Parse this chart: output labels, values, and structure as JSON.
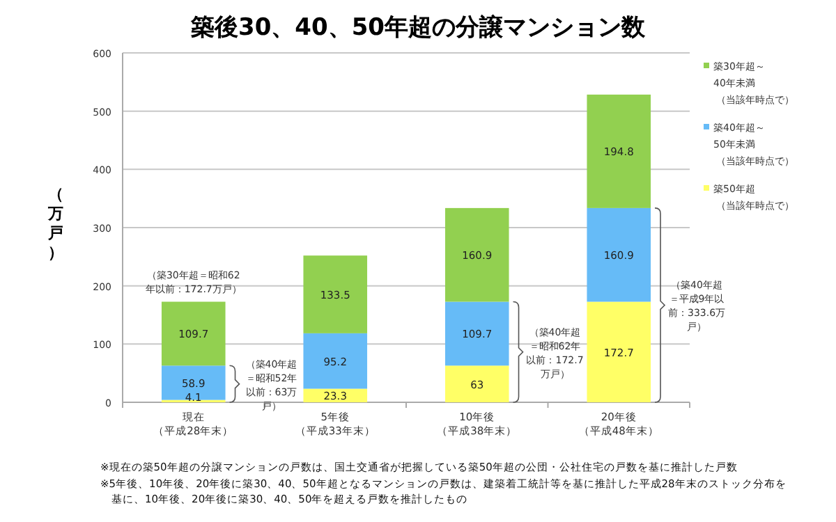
{
  "chart_data": {
    "type": "bar",
    "stacked": true,
    "title": "築後30、40、50年超の分譲マンション数",
    "ylabel": "（万戸）",
    "categories": [
      "現在（平成28年末）",
      "5年後（平成33年末）",
      "10年後（平成38年末）",
      "20年後（平成48年末）"
    ],
    "series": [
      {
        "name": "築50年超（当該年時点で）",
        "color": "#ffff66",
        "values": [
          4.1,
          23.3,
          63,
          172.7
        ]
      },
      {
        "name": "築40年超～50年未満（当該年時点で）",
        "color": "#66bbf7",
        "values": [
          58.9,
          95.2,
          109.7,
          160.9
        ]
      },
      {
        "name": "築30年超～40年未満（当該年時点で）",
        "color": "#92d050",
        "values": [
          109.7,
          133.5,
          160.9,
          194.8
        ]
      }
    ],
    "data_labels": true,
    "ylim": [
      0,
      600
    ],
    "yticks": [
      0,
      100,
      200,
      300,
      400,
      500,
      600
    ],
    "grid": "y",
    "legend": "top right",
    "annotations": [
      {
        "text": "（築30年超＝昭和62年以前：172.7万戸）",
        "x": "現在（平成28年末）",
        "y": 172.7
      },
      "（築40年超＝昭和52年以前：63万戸）",
      "（築40年超＝昭和62年以前：172.7万戸）",
      "（築40年超＝平成9年以前：333.6万戸）",
      "※現在の築50年超の分譲マンションの戸数は、国土交通省が把握している築50年超の公団・公社住宅の戸数を基に推計した戸数",
      "※5年後、10年後、20年後に築30、40、50年超となるマンションの戸数は、建築着工統計等を基に推計した平成28年末のストック分布を基に、10年後、20年後に築30、40、50年を超える戸数を推計したもの"
    ]
  }
}
